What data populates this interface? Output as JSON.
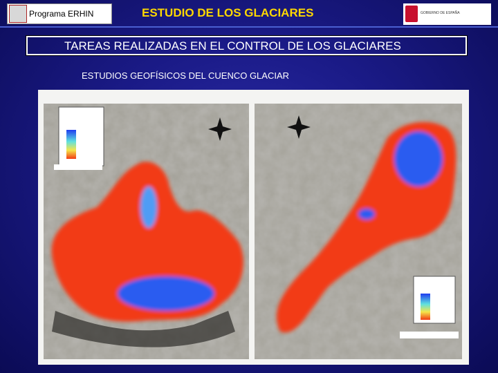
{
  "header": {
    "program": "Programa ERHIN",
    "title": "ESTUDIO DE LOS GLACIARES",
    "logo_text": "GOBIERNO DE ESPAÑA"
  },
  "section_title": "TAREAS REALIZADAS EN EL CONTROL DE LOS GLACIARES",
  "subtitle": "ESTUDIOS GEOFÍSICOS DEL CUENCO GLACIAR"
}
